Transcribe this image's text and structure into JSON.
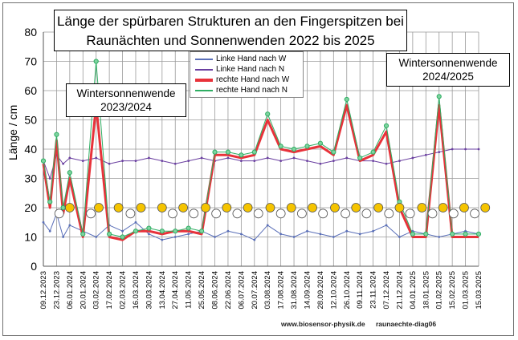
{
  "chart_data": {
    "type": "line",
    "title_line1": "Länge der spürbaren Strukturen an den Fingerspitzen bei",
    "title_line2": "Raunächten  und Sonnenwenden 2022 bis 2025",
    "ylabel": "Länge / cm",
    "xlabel": "",
    "ylim": [
      0,
      80
    ],
    "yticks": [
      0,
      10,
      20,
      30,
      40,
      50,
      60,
      70,
      80
    ],
    "grid": true,
    "legend_position": "top-center",
    "x_tick_labels": [
      "09.12.2023",
      "23.12.2023",
      "06.01.2024",
      "20.01.2024",
      "03.02.2024",
      "17.02.2024",
      "02.03.2024",
      "16.03.2024",
      "30.03.2024",
      "13.04.2024",
      "27.04.2024",
      "11.05.2024",
      "25.05.2024",
      "08.06.2024",
      "22.06.2024",
      "06.07.2024",
      "20.07.2024",
      "03.08.2024",
      "17.08.2024",
      "31.08.2024",
      "14.09.2024",
      "28.09.2024",
      "12.10.2024",
      "26.10.2024",
      "09.11.2024",
      "23.11.2024",
      "07.12.2024",
      "21.12.2024",
      "04.01.2025",
      "18.01.2025",
      "01.02.2025",
      "15.02.2025",
      "01.03.2025",
      "15.03.2025"
    ],
    "series": [
      {
        "name": "Linke Hand nach W",
        "color": "#5a6fb8",
        "marker": "dot-small",
        "x": [
          0,
          0.5,
          1,
          1.5,
          2,
          3,
          4,
          5,
          6,
          7,
          8,
          9,
          10,
          11,
          12,
          13,
          14,
          15,
          16,
          17,
          18,
          19,
          20,
          21,
          22,
          23,
          24,
          25,
          26,
          27,
          28,
          29,
          30,
          31,
          32,
          33
        ],
        "y": [
          15,
          12,
          18,
          10,
          14,
          12,
          10,
          14,
          12,
          15,
          11,
          9,
          10,
          11,
          12,
          10,
          12,
          11,
          9,
          14,
          11,
          10,
          12,
          11,
          10,
          12,
          11,
          12,
          14,
          10,
          12,
          11,
          10,
          11,
          12,
          11
        ]
      },
      {
        "name": "Linke Hand nach N",
        "color": "#6a3fa0",
        "marker": "dot-small",
        "x": [
          0,
          0.5,
          1,
          1.5,
          2,
          3,
          4,
          5,
          6,
          7,
          8,
          9,
          10,
          11,
          12,
          13,
          14,
          15,
          16,
          17,
          18,
          19,
          20,
          21,
          22,
          23,
          24,
          25,
          26,
          27,
          28,
          29,
          30,
          31,
          32,
          33
        ],
        "y": [
          36,
          30,
          38,
          35,
          37,
          36,
          37,
          35,
          36,
          36,
          37,
          36,
          35,
          36,
          37,
          36,
          37,
          36,
          36,
          37,
          36,
          37,
          36,
          35,
          36,
          37,
          36,
          36,
          35,
          36,
          37,
          38,
          39,
          40,
          40,
          40
        ]
      },
      {
        "name": "rechte Hand nach W",
        "color": "#e8323a",
        "marker": "line-thick",
        "x": [
          0,
          0.5,
          1,
          1.5,
          2,
          3,
          4,
          5,
          6,
          7,
          8,
          9,
          10,
          11,
          12,
          13,
          14,
          15,
          16,
          17,
          18,
          19,
          20,
          21,
          22,
          23,
          24,
          25,
          26,
          27,
          28,
          29,
          30,
          31,
          32,
          33
        ],
        "y": [
          35,
          20,
          43,
          18,
          30,
          10,
          55,
          10,
          9,
          12,
          12,
          11,
          12,
          12,
          11,
          38,
          38,
          37,
          38,
          50,
          40,
          39,
          40,
          41,
          38,
          55,
          36,
          38,
          46,
          20,
          10,
          10,
          55,
          10,
          10,
          10
        ]
      },
      {
        "name": "rechte Hand nach N",
        "color": "#2fae63",
        "marker": "circle-open",
        "x": [
          0,
          0.5,
          1,
          1.5,
          2,
          3,
          4,
          5,
          6,
          7,
          8,
          9,
          10,
          11,
          12,
          13,
          14,
          15,
          16,
          17,
          18,
          19,
          20,
          21,
          22,
          23,
          24,
          25,
          26,
          27,
          28,
          29,
          30,
          31,
          32,
          33
        ],
        "y": [
          36,
          22,
          45,
          20,
          32,
          11,
          70,
          11,
          10,
          12,
          13,
          12,
          12,
          13,
          12,
          39,
          39,
          38,
          39,
          52,
          41,
          40,
          41,
          42,
          39,
          57,
          37,
          39,
          48,
          22,
          11,
          11,
          58,
          11,
          11,
          11
        ]
      }
    ],
    "reference_markers": [
      {
        "name": "yellow-circles",
        "color": "#f5c400",
        "y": 20,
        "x": [
          2,
          4.2,
          5.7,
          7.4,
          9,
          10.6,
          12.3,
          13.9,
          15.5,
          17.2,
          18.8,
          20.4,
          22.1,
          23.7,
          25.4,
          27,
          28.7,
          30.3,
          31.9,
          33.5
        ]
      },
      {
        "name": "open-circles",
        "color": "#ffffff",
        "y": 18,
        "x": [
          1.2,
          3.6,
          6.6,
          9.8,
          11.4,
          13.1,
          14.7,
          16.3,
          18,
          19.6,
          21.2,
          22.9,
          24.5,
          26.2,
          27.8,
          29.5,
          31.1,
          32.7
        ]
      }
    ],
    "annotations": [
      {
        "id": "left",
        "line1": "Wintersonnenwende",
        "line2": "2023/2024"
      },
      {
        "id": "right",
        "line1": "Wintersonnenwende",
        "line2": "2024/2025"
      }
    ]
  },
  "footer": {
    "url": "www.biosensor-physik.de",
    "id": "raunaechte-diag06"
  }
}
